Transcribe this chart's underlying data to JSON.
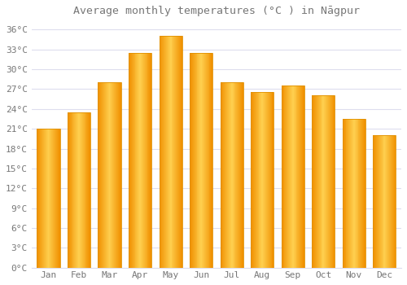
{
  "title": "Average monthly temperatures (°C ) in Nāgpur",
  "months": [
    "Jan",
    "Feb",
    "Mar",
    "Apr",
    "May",
    "Jun",
    "Jul",
    "Aug",
    "Sep",
    "Oct",
    "Nov",
    "Dec"
  ],
  "values": [
    21.0,
    23.5,
    28.0,
    32.5,
    35.0,
    32.5,
    28.0,
    26.5,
    27.5,
    26.0,
    22.5,
    20.0
  ],
  "bar_color_center": "#FFD060",
  "bar_color_edge": "#F0A000",
  "background_color": "#FFFFFF",
  "grid_color": "#DDDDEE",
  "ylim": [
    0,
    37
  ],
  "yticks": [
    0,
    3,
    6,
    9,
    12,
    15,
    18,
    21,
    24,
    27,
    30,
    33,
    36
  ],
  "title_fontsize": 9.5,
  "tick_fontsize": 8,
  "text_color": "#777777",
  "tick_label_color": "#777777"
}
